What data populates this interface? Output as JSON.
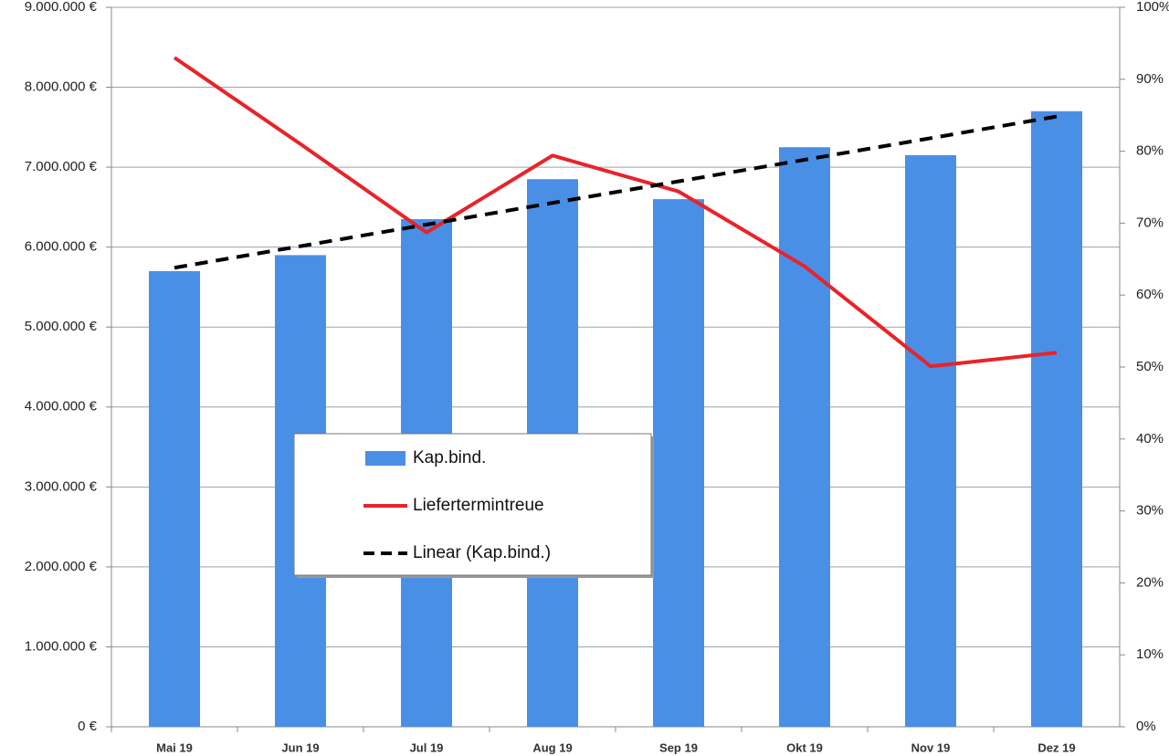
{
  "chart_data": {
    "type": "bar",
    "categories": [
      "Mai 19",
      "Jun 19",
      "Jul 19",
      "Aug 19",
      "Sep 19",
      "Okt 19",
      "Nov 19",
      "Dez 19"
    ],
    "series": [
      {
        "name": "Kap.bind.",
        "type": "bar",
        "color": "#4a8fe6",
        "values": [
          5700000,
          5900000,
          6350000,
          6850000,
          6600000,
          7250000,
          7150000,
          7700000
        ]
      },
      {
        "name": "Liefertermintreue",
        "type": "line",
        "axis": "y2",
        "color": "#e8232a",
        "values": [
          93,
          81,
          68.7,
          79.4,
          74.4,
          64,
          50.1,
          52
        ]
      },
      {
        "name": "Linear (Kap.bind.)",
        "type": "line",
        "style": "dashed",
        "color": "#000000",
        "values": [
          5742000,
          6012000,
          6282000,
          6553000,
          6823000,
          7093000,
          7363000,
          7634000
        ]
      }
    ],
    "ylim": [
      0,
      9000000
    ],
    "yticks": [
      {
        "value": 0,
        "label": "0 €"
      },
      {
        "value": 1000000,
        "label": "1.000.000 €"
      },
      {
        "value": 2000000,
        "label": "2.000.000 €"
      },
      {
        "value": 3000000,
        "label": "3.000.000 €"
      },
      {
        "value": 4000000,
        "label": "4.000.000 €"
      },
      {
        "value": 5000000,
        "label": "5.000.000 €"
      },
      {
        "value": 6000000,
        "label": "6.000.000 €"
      },
      {
        "value": 7000000,
        "label": "7.000.000 €"
      },
      {
        "value": 8000000,
        "label": "8.000.000 €"
      },
      {
        "value": 9000000,
        "label": "9.000.000 €"
      }
    ],
    "y2lim": [
      0,
      100
    ],
    "y2ticks": [
      {
        "value": 0,
        "label": "0%"
      },
      {
        "value": 10,
        "label": "10%"
      },
      {
        "value": 20,
        "label": "20%"
      },
      {
        "value": 30,
        "label": "30%"
      },
      {
        "value": 40,
        "label": "40%"
      },
      {
        "value": 50,
        "label": "50%"
      },
      {
        "value": 60,
        "label": "60%"
      },
      {
        "value": 70,
        "label": "70%"
      },
      {
        "value": 80,
        "label": "80%"
      },
      {
        "value": 90,
        "label": "90%"
      },
      {
        "value": 100,
        "label": "100%"
      }
    ],
    "grid": true,
    "legend": "center"
  }
}
